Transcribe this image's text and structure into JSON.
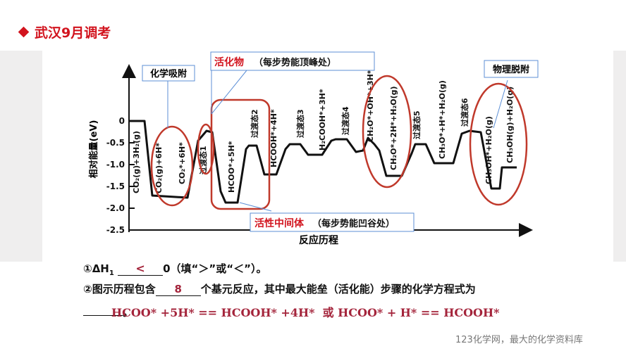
{
  "header": {
    "title": "武汉9月调考"
  },
  "colors": {
    "accent": "#d2141e",
    "ellipse": "#c0392b",
    "answer": "#a4243b"
  },
  "chart": {
    "ylabel": "相对能量(eV)",
    "xlabel": "反应历程",
    "yticks": [
      "0",
      "-0.5",
      "-1.0",
      "-1.5",
      "-2.0",
      "-2.5"
    ],
    "states": [
      "CO₂(g)+3H₂(g)",
      "CO₂(g)+6H*",
      "CO₂*+6H*",
      "过渡态1",
      "HCOO*+5H*",
      "过渡态2",
      "HCOOH*+4H*",
      "过渡态3",
      "H₂COOH*+3H*",
      "过渡态4",
      "CH₂O*+OH*+3H*",
      "CH₂O*+2H*+H₂O(g)",
      "过渡态5",
      "CH₃O*+H*+H₂O(g)",
      "过渡态6",
      "CH₃OH*+H₂O(g)",
      "CH₃OH(g)+H₂O(g)"
    ],
    "callouts": {
      "adsorb": "化学吸附",
      "activated_title": "活化物",
      "activated_note": "（每步势能顶峰处）",
      "intermediate_title": "活性中间体",
      "intermediate_note": "（每步势能凹谷处）",
      "desorb": "物理脱附"
    }
  },
  "q1": {
    "prefix": "①ΔH",
    "sub": "1",
    "answer": "<",
    "suffix": "0（填“＞”或“＜”）。"
  },
  "q2": {
    "prefix": "②图示历程包含",
    "answer": "8",
    "suffix": "个基元反应，其中最大能垒（活化能）步骤的化学方程式为"
  },
  "q2_line2": {
    "end": "。",
    "answer": "HCOO* +5H* == HCOOH* +4H*  或 HCOO* + H* == HCOOH*"
  },
  "footer": "123化学网，最大的化学资料库"
}
